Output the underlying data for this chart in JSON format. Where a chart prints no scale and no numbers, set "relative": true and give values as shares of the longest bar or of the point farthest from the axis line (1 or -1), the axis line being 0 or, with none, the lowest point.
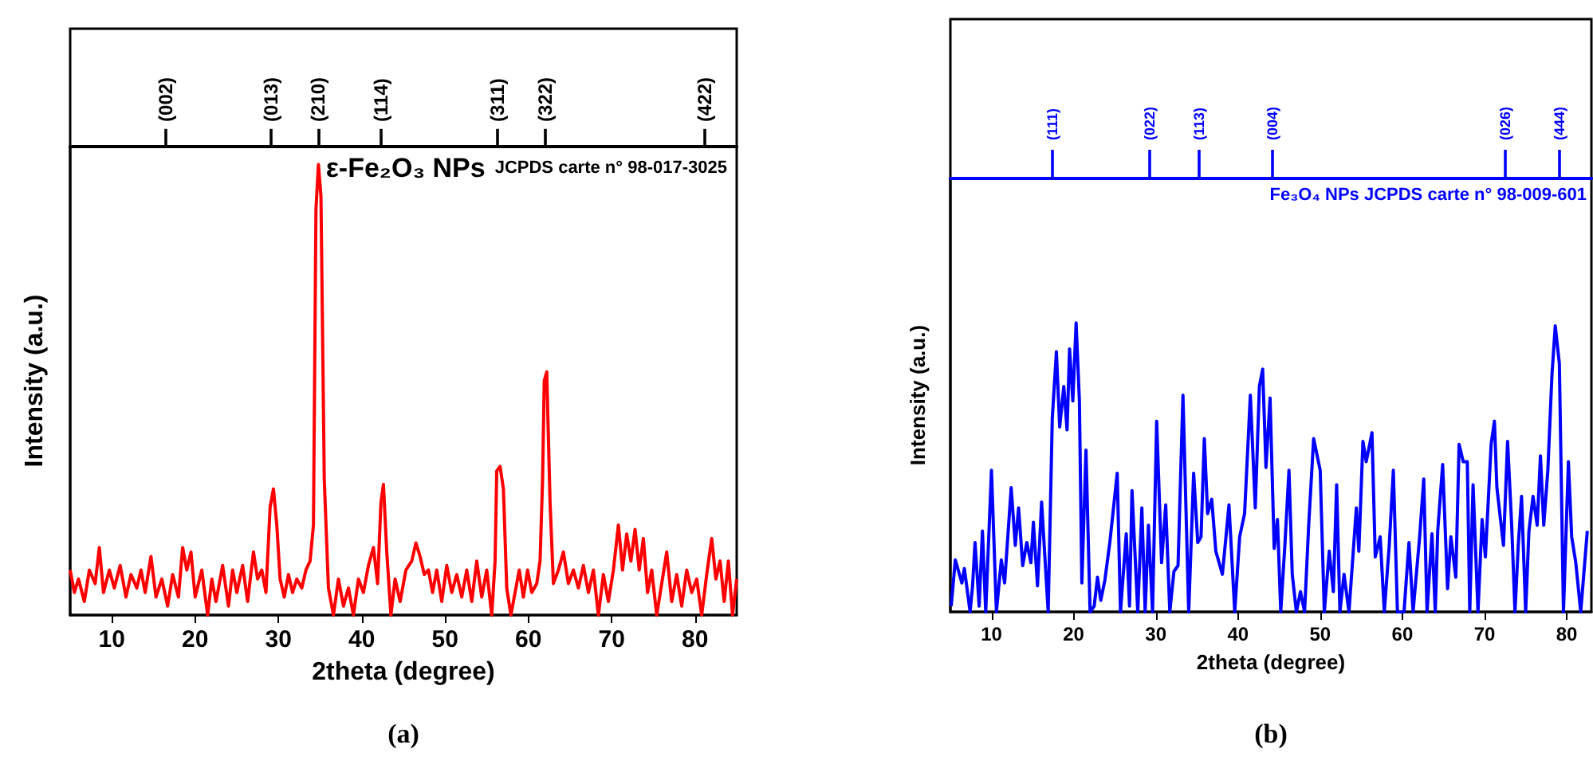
{
  "chart_data": [
    {
      "type": "line",
      "xlabel": "2theta (degree)",
      "ylabel": "Intensity (a.u.)",
      "relative": true,
      "xlim": [
        5,
        85
      ],
      "xticks": [
        10,
        20,
        30,
        40,
        50,
        60,
        70,
        80
      ],
      "grid": false,
      "line_style": "solid",
      "annotations": [
        {
          "text": "(002)",
          "x": 16.5
        },
        {
          "text": "(013)",
          "x": 29.1
        },
        {
          "text": "(210)",
          "x": 34.8
        },
        {
          "text": "(114)",
          "x": 42.3
        },
        {
          "text": "(311)",
          "x": 56.3
        },
        {
          "text": "(322)",
          "x": 62.0
        },
        {
          "text": "(422)",
          "x": 81.2
        },
        "ε-Fe₂O₃ NPs",
        "JCPDS carte n° 98-017-3025",
        "(a)"
      ],
      "x": [
        5,
        5.5,
        6,
        6.7,
        7.3,
        8,
        8.5,
        9,
        9.7,
        10.3,
        11,
        11.7,
        12.3,
        13,
        13.5,
        14,
        14.7,
        15.3,
        16,
        16.7,
        17.3,
        18,
        18.5,
        19,
        19.5,
        20,
        20.8,
        21.5,
        22,
        22.5,
        23.3,
        24,
        24.5,
        25,
        25.7,
        26.3,
        27,
        27.5,
        28,
        28.5,
        29,
        29.4,
        29.8,
        30.2,
        30.7,
        31.2,
        31.7,
        32.2,
        32.8,
        33.3,
        33.8,
        34.2,
        34.5,
        34.8,
        35.1,
        35.5,
        36,
        36.6,
        37.2,
        37.8,
        38.4,
        39,
        39.6,
        40.2,
        40.8,
        41.4,
        41.9,
        42.3,
        42.6,
        43,
        43.5,
        44,
        44.6,
        45.3,
        46,
        46.5,
        47,
        47.5,
        48,
        48.5,
        49,
        49.6,
        50.2,
        50.8,
        51.4,
        52,
        52.6,
        53.2,
        53.8,
        54.4,
        55,
        55.6,
        56,
        56.2,
        56.6,
        57,
        57.4,
        57.9,
        58.4,
        58.9,
        59.4,
        59.9,
        60.4,
        61,
        61.4,
        61.7,
        61.9,
        62.2,
        62.6,
        63,
        63.6,
        64.2,
        64.8,
        65.4,
        66,
        66.6,
        67.2,
        67.8,
        68.4,
        69,
        69.6,
        70.2,
        70.8,
        71.3,
        71.8,
        72.3,
        72.8,
        73.3,
        73.8,
        74.3,
        74.8,
        75.4,
        76,
        76.6,
        77.2,
        77.8,
        78.4,
        79,
        79.6,
        80.2,
        80.8,
        81.4,
        82,
        82.5,
        83,
        83.5,
        84,
        84.5,
        85
      ],
      "series": [
        {
          "color": "#ff0000",
          "values": [
            0.1,
            0.05,
            0.08,
            0.03,
            0.1,
            0.07,
            0.15,
            0.05,
            0.1,
            0.06,
            0.11,
            0.04,
            0.09,
            0.06,
            0.1,
            0.05,
            0.13,
            0.04,
            0.08,
            0.02,
            0.09,
            0.04,
            0.15,
            0.1,
            0.14,
            0.04,
            0.1,
            0,
            0.08,
            0.03,
            0.11,
            0.02,
            0.1,
            0.05,
            0.11,
            0.03,
            0.14,
            0.08,
            0.1,
            0.05,
            0.24,
            0.28,
            0.2,
            0.08,
            0.04,
            0.09,
            0.05,
            0.08,
            0.06,
            0.1,
            0.12,
            0.2,
            0.9,
            1,
            0.93,
            0.3,
            0.06,
            0,
            0.08,
            0.02,
            0.06,
            0,
            0.08,
            0.05,
            0.11,
            0.15,
            0.07,
            0.25,
            0.29,
            0.14,
            0,
            0.08,
            0.03,
            0.1,
            0.12,
            0.16,
            0.13,
            0.09,
            0.1,
            0.05,
            0.1,
            0.03,
            0.11,
            0.05,
            0.09,
            0.04,
            0.1,
            0.03,
            0.12,
            0.04,
            0.1,
            0,
            0.12,
            0.32,
            0.33,
            0.28,
            0.06,
            0,
            0.05,
            0.1,
            0.04,
            0.1,
            0.05,
            0.07,
            0.12,
            0.3,
            0.52,
            0.54,
            0.25,
            0.07,
            0.1,
            0.14,
            0.07,
            0.1,
            0.06,
            0.11,
            0.05,
            0.1,
            0,
            0.09,
            0.03,
            0.1,
            0.2,
            0.1,
            0.18,
            0.12,
            0.19,
            0.1,
            0.17,
            0.05,
            0.1,
            0,
            0.07,
            0.14,
            0.03,
            0.09,
            0.02,
            0.1,
            0.05,
            0.08,
            0,
            0.09,
            0.17,
            0.08,
            0.12,
            0.03,
            0.12,
            0,
            0.08
          ]
        }
      ]
    },
    {
      "type": "line",
      "xlabel": "2theta (degree)",
      "ylabel": "Intensity (a.u.)",
      "relative": true,
      "xlim": [
        5,
        83
      ],
      "xticks": [
        10,
        20,
        30,
        40,
        50,
        60,
        70,
        80
      ],
      "grid": false,
      "line_style": "solid",
      "annotations": [
        {
          "text": "(111)",
          "x": 17.4
        },
        {
          "text": "(022)",
          "x": 29.3
        },
        {
          "text": "(113)",
          "x": 35.3
        },
        {
          "text": "(004)",
          "x": 44.2
        },
        {
          "text": "(026)",
          "x": 72.5
        },
        {
          "text": "(444)",
          "x": 79.1
        },
        "Fe₃O₄ NPs JCPDS carte n° 98-009-601",
        "(b)"
      ],
      "x": [
        5.1,
        5.6,
        6.4,
        6.7,
        7.4,
        7.7,
        8.0,
        8.5,
        8.9,
        9.3,
        10.0,
        10.6,
        11.2,
        11.6,
        12.4,
        12.9,
        13.3,
        13.8,
        14.3,
        14.8,
        15.1,
        15.6,
        16.1,
        16.9,
        17.4,
        17.9,
        18.3,
        18.8,
        19.2,
        19.5,
        19.9,
        20.3,
        20.7,
        21.0,
        21.5,
        22.0,
        22.5,
        22.9,
        23.3,
        23.8,
        24.4,
        25.3,
        25.7,
        26.4,
        26.8,
        27.1,
        27.8,
        28.3,
        28.7,
        29.1,
        29.6,
        30.1,
        30.7,
        31.2,
        31.7,
        32.2,
        32.7,
        33.3,
        34.0,
        34.6,
        35.1,
        35.5,
        35.9,
        36.3,
        36.8,
        37.3,
        38.1,
        38.9,
        39.6,
        40.2,
        40.8,
        41.5,
        42.1,
        42.6,
        43.0,
        43.4,
        43.9,
        44.4,
        44.8,
        45.2,
        45.7,
        46.2,
        46.6,
        47.1,
        47.6,
        48.1,
        48.6,
        49.2,
        50.0,
        50.5,
        51.1,
        51.6,
        52.0,
        52.4,
        52.9,
        53.5,
        54.4,
        54.7,
        55.2,
        55.6,
        56.3,
        56.7,
        57.3,
        57.8,
        58.4,
        58.9,
        59.4,
        60.2,
        60.8,
        61.3,
        62.1,
        62.6,
        63.0,
        63.6,
        64.0,
        64.3,
        64.9,
        65.5,
        65.9,
        66.5,
        66.9,
        67.4,
        67.9,
        68.2,
        68.6,
        69.2,
        69.7,
        70.1,
        70.8,
        71.2,
        71.5,
        72.3,
        72.8,
        73.3,
        73.7,
        74.1,
        74.5,
        75.0,
        75.4,
        75.9,
        76.4,
        76.8,
        77.2,
        77.7,
        78.2,
        78.6,
        79.1,
        79.6,
        80.2,
        80.6,
        81.1,
        81.7,
        82.5
      ],
      "series": [
        {
          "color": "#0000ff",
          "values": [
            0.02,
            0.18,
            0.1,
            0.15,
            0,
            0.09,
            0.24,
            0.02,
            0.28,
            0,
            0.49,
            0,
            0.18,
            0.1,
            0.43,
            0.23,
            0.36,
            0.16,
            0.24,
            0.17,
            0.31,
            0.09,
            0.38,
            0,
            0.67,
            0.9,
            0.64,
            0.78,
            0.63,
            0.91,
            0.73,
            1,
            0.73,
            0.1,
            0.56,
            0,
            0.02,
            0.12,
            0.04,
            0.11,
            0.24,
            0.48,
            0,
            0.27,
            0.02,
            0.42,
            0,
            0.36,
            0,
            0.3,
            0,
            0.66,
            0.17,
            0.37,
            0,
            0.14,
            0.16,
            0.75,
            0,
            0.48,
            0.24,
            0.26,
            0.6,
            0.34,
            0.39,
            0.21,
            0.13,
            0.37,
            0,
            0.26,
            0.34,
            0.75,
            0.36,
            0.78,
            0.84,
            0.5,
            0.74,
            0.22,
            0.32,
            0,
            0.23,
            0.49,
            0.13,
            0,
            0.07,
            0,
            0.3,
            0.6,
            0.49,
            0,
            0.21,
            0.07,
            0.44,
            0,
            0.13,
            0,
            0.36,
            0.21,
            0.59,
            0.52,
            0.62,
            0.19,
            0.26,
            0,
            0.23,
            0.49,
            0,
            0,
            0.24,
            0,
            0.26,
            0.46,
            0,
            0.27,
            0,
            0.28,
            0.51,
            0.08,
            0.26,
            0.12,
            0.58,
            0.52,
            0.52,
            0,
            0.44,
            0,
            0.32,
            0.19,
            0.58,
            0.66,
            0.43,
            0.23,
            0.59,
            0.3,
            0,
            0.23,
            0.4,
            0,
            0.28,
            0.4,
            0.3,
            0.54,
            0.3,
            0.49,
            0.82,
            0.99,
            0.86,
            0,
            0.52,
            0.26,
            0.17,
            0,
            0.28
          ]
        }
      ]
    }
  ]
}
